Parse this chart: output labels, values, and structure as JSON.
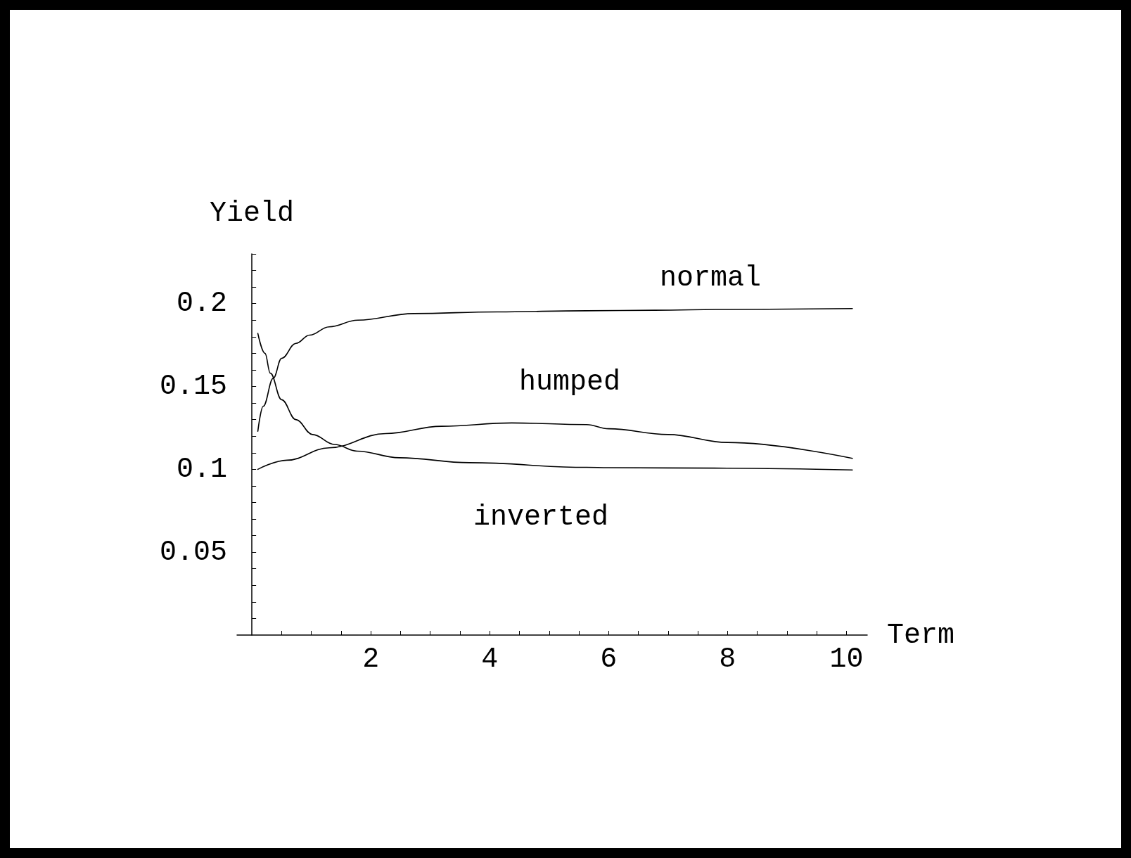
{
  "chart_data": {
    "type": "line",
    "xlabel": "Term",
    "ylabel": "Yield",
    "xlim": [
      -0.25,
      10.35
    ],
    "ylim": [
      0,
      0.23
    ],
    "xticks": [
      {
        "value": 0.5,
        "label": null
      },
      {
        "value": 1,
        "label": null
      },
      {
        "value": 1.5,
        "label": null
      },
      2,
      {
        "value": 2.5,
        "label": null
      },
      {
        "value": 3,
        "label": null
      },
      {
        "value": 3.5,
        "label": null
      },
      4,
      {
        "value": 4.5,
        "label": null
      },
      {
        "value": 5,
        "label": null
      },
      {
        "value": 5.5,
        "label": null
      },
      6,
      {
        "value": 6.5,
        "label": null
      },
      {
        "value": 7,
        "label": null
      },
      {
        "value": 7.5,
        "label": null
      },
      8,
      {
        "value": 8.5,
        "label": null
      },
      {
        "value": 9,
        "label": null
      },
      {
        "value": 9.5,
        "label": null
      },
      10
    ],
    "yticks": [
      {
        "value": 0.01,
        "label": null
      },
      {
        "value": 0.02,
        "label": null
      },
      {
        "value": 0.03,
        "label": null
      },
      {
        "value": 0.04,
        "label": null
      },
      0.05,
      {
        "value": 0.06,
        "label": null
      },
      {
        "value": 0.07,
        "label": null
      },
      {
        "value": 0.08,
        "label": null
      },
      {
        "value": 0.09,
        "label": null
      },
      0.1,
      {
        "value": 0.11,
        "label": null
      },
      {
        "value": 0.12,
        "label": null
      },
      {
        "value": 0.13,
        "label": null
      },
      {
        "value": 0.14,
        "label": null
      },
      0.15,
      {
        "value": 0.16,
        "label": null
      },
      {
        "value": 0.17,
        "label": null
      },
      {
        "value": 0.18,
        "label": null
      },
      {
        "value": 0.19,
        "label": null
      },
      0.2,
      {
        "value": 0.21,
        "label": null
      },
      {
        "value": 0.22,
        "label": null
      },
      {
        "value": 0.23,
        "label": null
      }
    ],
    "grid": false,
    "marker": "none",
    "line_style": "solid",
    "series": [
      {
        "name": "normal",
        "color": "#000000",
        "x": [
          0.1,
          0.19,
          0.36,
          0.5,
          0.74,
          0.97,
          1.3,
          1.78,
          2.72,
          4.13,
          5.63,
          6.77,
          8,
          10.1
        ],
        "values": [
          0.123,
          0.138,
          0.155,
          0.167,
          0.176,
          0.181,
          0.186,
          0.19,
          0.194,
          0.195,
          0.1957,
          0.196,
          0.1965,
          0.197
        ]
      },
      {
        "name": "humped",
        "color": "#000000",
        "x": [
          0.1,
          0.59,
          1.3,
          2.25,
          3.19,
          4.37,
          5.63,
          6,
          7,
          8,
          10.1
        ],
        "values": [
          0.1,
          0.1055,
          0.113,
          0.1216,
          0.126,
          0.128,
          0.127,
          0.1245,
          0.121,
          0.1162,
          0.1066
        ]
      },
      {
        "name": "inverted",
        "color": "#000000",
        "x": [
          0.1,
          0.22,
          0.31,
          0.5,
          0.74,
          1.02,
          1.39,
          1.77,
          2.48,
          3.66,
          5.63,
          6,
          8,
          10.1
        ],
        "values": [
          0.182,
          0.17,
          0.158,
          0.142,
          0.13,
          0.121,
          0.115,
          0.111,
          0.107,
          0.104,
          0.1012,
          0.101,
          0.1007,
          0.0996
        ]
      }
    ]
  }
}
